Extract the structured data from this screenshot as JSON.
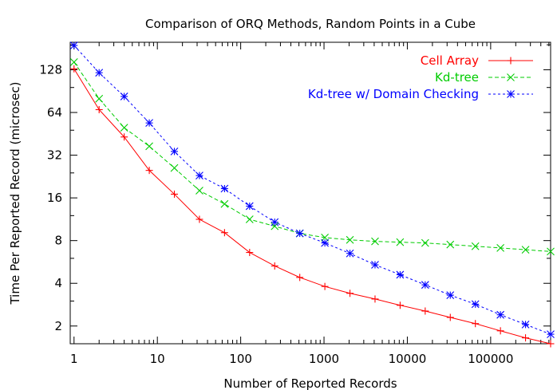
{
  "chart_data": {
    "type": "line",
    "title": "Comparison of ORQ Methods, Random Points in a Cube",
    "xlabel": "Number of Reported Records",
    "ylabel": "Time Per Reported Record (microsec)",
    "x_scale": "log",
    "y_scale": "log",
    "xlim": [
      0.9,
      524288
    ],
    "ylim": [
      1.5,
      200
    ],
    "x_ticks": [
      1,
      10,
      100,
      1000,
      10000,
      100000
    ],
    "x_tick_labels": [
      "1",
      "10",
      "100",
      "1000",
      "10000",
      "100000"
    ],
    "y_ticks": [
      2,
      4,
      8,
      16,
      32,
      64,
      128
    ],
    "y_tick_labels": [
      "2",
      "4",
      "8",
      "16",
      "32",
      "64",
      "128"
    ],
    "legend_position": "top-right",
    "x": [
      1,
      2,
      4,
      8,
      16,
      32,
      64,
      128,
      256,
      512,
      1024,
      2048,
      4096,
      8192,
      16384,
      32768,
      65536,
      131072,
      262144,
      524288
    ],
    "series": [
      {
        "name": "Cell Array",
        "color": "#ff0000",
        "line_style": "solid",
        "marker": "plus",
        "values": [
          130,
          67,
          43,
          25,
          17,
          11.3,
          9.1,
          6.6,
          5.3,
          4.4,
          3.8,
          3.4,
          3.1,
          2.8,
          2.55,
          2.3,
          2.08,
          1.85,
          1.65,
          1.5
        ]
      },
      {
        "name": "Kd-tree",
        "color": "#00cc00",
        "line_style": "dashed",
        "marker": "cross",
        "values": [
          145,
          80,
          50,
          37,
          26,
          18,
          14.5,
          11.3,
          10.1,
          9.0,
          8.4,
          8.1,
          7.9,
          7.8,
          7.7,
          7.5,
          7.3,
          7.1,
          6.9,
          6.7
        ]
      },
      {
        "name": "Kd-tree w/ Domain Checking",
        "color": "#0000ff",
        "line_style": "dotted",
        "marker": "star",
        "values": [
          190,
          122,
          83,
          54,
          34,
          23,
          18.6,
          14,
          10.8,
          9.0,
          7.7,
          6.5,
          5.4,
          4.6,
          3.9,
          3.3,
          2.85,
          2.4,
          2.05,
          1.75
        ]
      }
    ]
  }
}
